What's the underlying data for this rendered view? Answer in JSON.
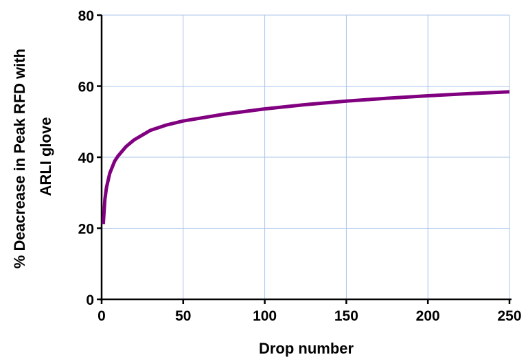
{
  "chart_data": {
    "type": "line",
    "title": "",
    "xlabel": "Drop number",
    "ylabel_lines": [
      "% Deacrease in Peak RFD with",
      "ARLI glove"
    ],
    "xlim": [
      0,
      250
    ],
    "ylim": [
      0,
      80
    ],
    "xticks": [
      0,
      50,
      100,
      150,
      200,
      250
    ],
    "yticks": [
      0,
      20,
      40,
      60,
      80
    ],
    "grid": true,
    "grid_color": "#a8c4ea",
    "series": [
      {
        "color": "#800080",
        "x": [
          1,
          2,
          3,
          5,
          8,
          10,
          15,
          20,
          30,
          40,
          50,
          75,
          100,
          125,
          150,
          175,
          200,
          225,
          250
        ],
        "y": [
          21.2,
          28.2,
          31.5,
          35.5,
          38.9,
          40.3,
          43.0,
          44.9,
          47.6,
          49.1,
          50.2,
          52.1,
          53.6,
          54.8,
          55.8,
          56.6,
          57.3,
          57.9,
          58.4
        ]
      }
    ]
  }
}
